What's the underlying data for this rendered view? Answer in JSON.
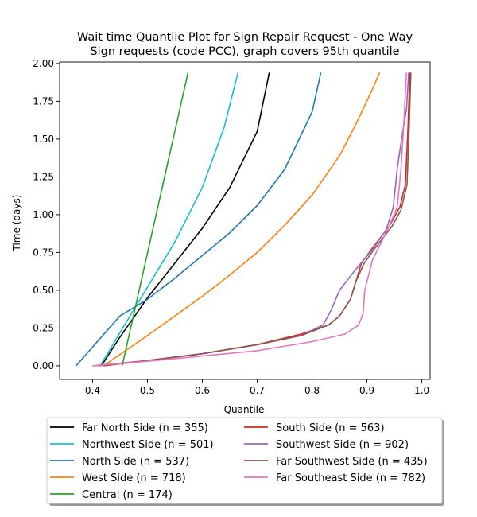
{
  "chart_data": {
    "type": "line",
    "title": "Wait time Quantile Plot for Sign Repair Request - One Way\nSign  requests (code PCC), graph covers 95th quantile",
    "xlabel": "Quantile",
    "ylabel": "Time (days)",
    "xlim": [
      0.34,
      1.015
    ],
    "ylim": [
      -0.09,
      2.01
    ],
    "xticks": [
      "0.4",
      "0.5",
      "0.6",
      "0.7",
      "0.8",
      "0.9",
      "1.0"
    ],
    "yticks": [
      "0.00",
      "0.25",
      "0.50",
      "0.75",
      "1.00",
      "1.25",
      "1.50",
      "1.75",
      "2.00"
    ],
    "grid": false,
    "legend_position": "bottom, below axes, two columns",
    "series": [
      {
        "name": "Far North Side (n = 355)",
        "color": "#000000",
        "points": [
          [
            0.416,
            0.0
          ],
          [
            0.45,
            0.19
          ],
          [
            0.5,
            0.45
          ],
          [
            0.55,
            0.68
          ],
          [
            0.6,
            0.91
          ],
          [
            0.65,
            1.18
          ],
          [
            0.7,
            1.55
          ],
          [
            0.722,
            1.94
          ]
        ]
      },
      {
        "name": "Northwest Side (n = 501)",
        "color": "#17becf",
        "points": [
          [
            0.414,
            0.0
          ],
          [
            0.45,
            0.22
          ],
          [
            0.5,
            0.52
          ],
          [
            0.55,
            0.82
          ],
          [
            0.6,
            1.18
          ],
          [
            0.64,
            1.58
          ],
          [
            0.665,
            1.94
          ]
        ]
      },
      {
        "name": "North Side (n = 537)",
        "color": "#1f77b4",
        "points": [
          [
            0.37,
            0.0
          ],
          [
            0.45,
            0.33
          ],
          [
            0.5,
            0.44
          ],
          [
            0.55,
            0.58
          ],
          [
            0.6,
            0.73
          ],
          [
            0.65,
            0.88
          ],
          [
            0.7,
            1.06
          ],
          [
            0.75,
            1.3
          ],
          [
            0.8,
            1.68
          ],
          [
            0.816,
            1.94
          ]
        ]
      },
      {
        "name": "West Side (n = 718)",
        "color": "#ff7f0e",
        "points": [
          [
            0.42,
            0.0
          ],
          [
            0.5,
            0.2
          ],
          [
            0.55,
            0.33
          ],
          [
            0.6,
            0.46
          ],
          [
            0.65,
            0.6
          ],
          [
            0.7,
            0.75
          ],
          [
            0.75,
            0.93
          ],
          [
            0.8,
            1.13
          ],
          [
            0.85,
            1.39
          ],
          [
            0.88,
            1.6
          ],
          [
            0.91,
            1.83
          ],
          [
            0.923,
            1.94
          ]
        ]
      },
      {
        "name": "Central (n = 174)",
        "color": "#2ca02c",
        "points": [
          [
            0.454,
            0.0
          ],
          [
            0.574,
            1.94
          ]
        ]
      },
      {
        "name": "South Side (n = 563)",
        "color": "#d62728",
        "points": [
          [
            0.42,
            0.0
          ],
          [
            0.5,
            0.035
          ],
          [
            0.6,
            0.08
          ],
          [
            0.7,
            0.14
          ],
          [
            0.78,
            0.21
          ],
          [
            0.83,
            0.27
          ],
          [
            0.85,
            0.33
          ],
          [
            0.87,
            0.44
          ],
          [
            0.88,
            0.56
          ],
          [
            0.89,
            0.68
          ],
          [
            0.91,
            0.78
          ],
          [
            0.94,
            0.92
          ],
          [
            0.96,
            1.05
          ],
          [
            0.97,
            1.2
          ],
          [
            0.975,
            1.6
          ],
          [
            0.978,
            1.94
          ]
        ]
      },
      {
        "name": "Southwest Side (n = 902)",
        "color": "#9467bd",
        "points": [
          [
            0.4,
            0.0
          ],
          [
            0.5,
            0.035
          ],
          [
            0.6,
            0.08
          ],
          [
            0.7,
            0.14
          ],
          [
            0.78,
            0.2
          ],
          [
            0.82,
            0.27
          ],
          [
            0.835,
            0.37
          ],
          [
            0.85,
            0.5
          ],
          [
            0.88,
            0.64
          ],
          [
            0.91,
            0.77
          ],
          [
            0.935,
            0.9
          ],
          [
            0.948,
            1.05
          ],
          [
            0.955,
            1.3
          ],
          [
            0.963,
            1.5
          ],
          [
            0.972,
            1.7
          ],
          [
            0.976,
            1.94
          ]
        ]
      },
      {
        "name": "Far Southwest Side (n = 435)",
        "color": "#8c564b",
        "points": [
          [
            0.41,
            0.0
          ],
          [
            0.5,
            0.035
          ],
          [
            0.6,
            0.08
          ],
          [
            0.7,
            0.14
          ],
          [
            0.78,
            0.2
          ],
          [
            0.83,
            0.27
          ],
          [
            0.85,
            0.33
          ],
          [
            0.87,
            0.44
          ],
          [
            0.88,
            0.56
          ],
          [
            0.895,
            0.68
          ],
          [
            0.915,
            0.78
          ],
          [
            0.945,
            0.92
          ],
          [
            0.962,
            1.03
          ],
          [
            0.973,
            1.2
          ],
          [
            0.977,
            1.6
          ],
          [
            0.98,
            1.94
          ]
        ]
      },
      {
        "name": "Far Southeast Side (n = 782)",
        "color": "#e377c2",
        "points": [
          [
            0.4,
            0.0
          ],
          [
            0.5,
            0.03
          ],
          [
            0.6,
            0.065
          ],
          [
            0.7,
            0.1
          ],
          [
            0.8,
            0.16
          ],
          [
            0.86,
            0.21
          ],
          [
            0.885,
            0.27
          ],
          [
            0.893,
            0.35
          ],
          [
            0.896,
            0.5
          ],
          [
            0.91,
            0.7
          ],
          [
            0.94,
            0.92
          ],
          [
            0.955,
            1.05
          ],
          [
            0.962,
            1.3
          ],
          [
            0.967,
            1.6
          ],
          [
            0.972,
            1.94
          ]
        ]
      }
    ]
  }
}
